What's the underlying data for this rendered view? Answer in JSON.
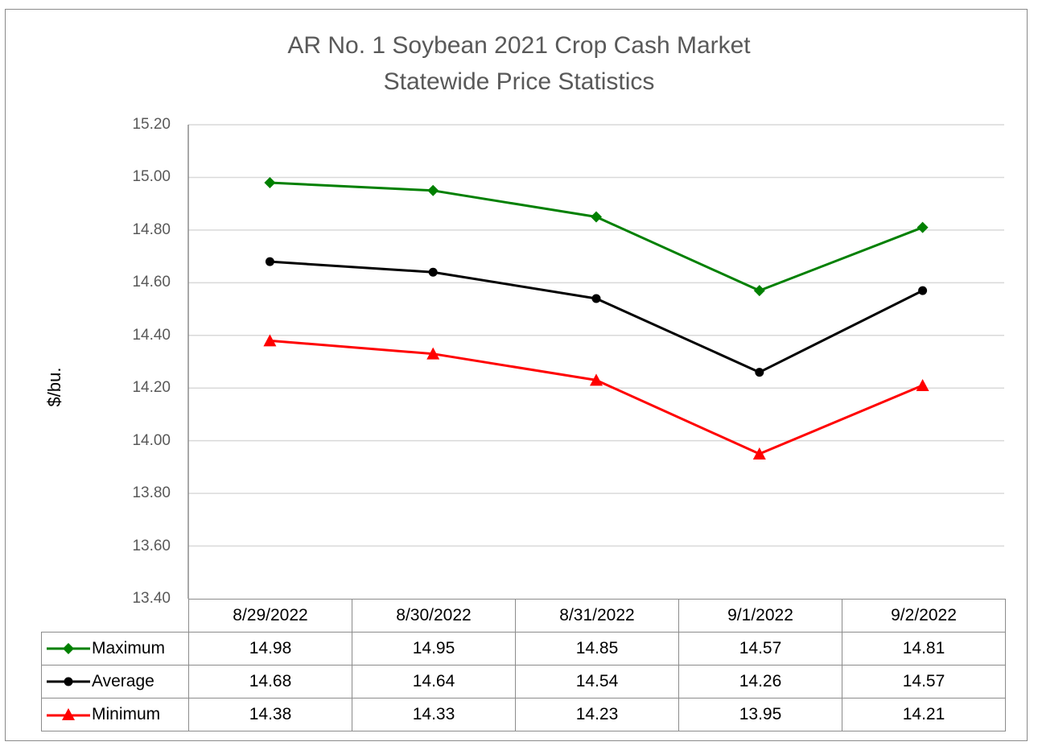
{
  "chart_data": {
    "type": "line",
    "title": "AR No. 1 Soybean 2021 Crop Cash Market",
    "subtitle": "Statewide Price Statistics",
    "xlabel": "",
    "ylabel": "$/bu.",
    "ylim": [
      13.4,
      15.2
    ],
    "yticks": [
      "15.20",
      "15.00",
      "14.80",
      "14.60",
      "14.40",
      "14.20",
      "14.00",
      "13.80",
      "13.60",
      "13.40"
    ],
    "grid": true,
    "legend_position": "data-table",
    "categories": [
      "8/29/2022",
      "8/30/2022",
      "8/31/2022",
      "9/1/2022",
      "9/2/2022"
    ],
    "series": [
      {
        "name": "Maximum",
        "color": "#008000",
        "marker": "diamond",
        "values": [
          14.98,
          14.95,
          14.85,
          14.57,
          14.81
        ]
      },
      {
        "name": "Average",
        "color": "#000000",
        "marker": "circle",
        "values": [
          14.68,
          14.64,
          14.54,
          14.26,
          14.57
        ]
      },
      {
        "name": "Minimum",
        "color": "#ff0000",
        "marker": "triangle",
        "values": [
          14.38,
          14.33,
          14.23,
          13.95,
          14.21
        ]
      }
    ]
  },
  "table": {
    "headers": [
      "8/29/2022",
      "8/30/2022",
      "8/31/2022",
      "9/1/2022",
      "9/2/2022"
    ],
    "rows": [
      {
        "label": "Maximum",
        "cells": [
          "14.98",
          "14.95",
          "14.85",
          "14.57",
          "14.81"
        ]
      },
      {
        "label": "Average",
        "cells": [
          "14.68",
          "14.64",
          "14.54",
          "14.26",
          "14.57"
        ]
      },
      {
        "label": "Minimum",
        "cells": [
          "14.38",
          "14.33",
          "14.23",
          "13.95",
          "14.21"
        ]
      }
    ]
  }
}
